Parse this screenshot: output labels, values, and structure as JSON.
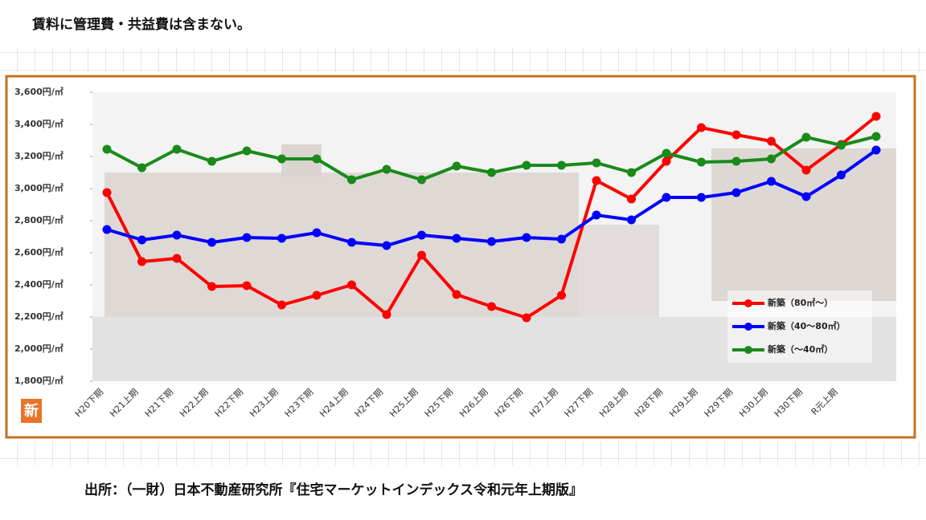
{
  "note": "賃料に管理費・共益費は含まない。",
  "source": "出所：（一財）日本不動産研究所『住宅マーケットインデックス令和元年上期版』",
  "badge": "新",
  "chart_data": {
    "type": "line",
    "categories": [
      "H20下期",
      "H21上期",
      "H21下期",
      "H22上期",
      "H22下期",
      "H23上期",
      "H23下期",
      "H24上期",
      "H24下期",
      "H25上期",
      "H25下期",
      "H26上期",
      "H26下期",
      "H27上期",
      "H27下期",
      "H28上期",
      "H28下期",
      "H29上期",
      "H29下期",
      "H30上期",
      "H30下期",
      "R元上期",
      null
    ],
    "series": [
      {
        "name": "新築（80㎡～）",
        "color": "#ff0000",
        "values": [
          2975,
          2545,
          2565,
          2390,
          2395,
          2275,
          2335,
          2400,
          2215,
          2585,
          2340,
          2265,
          2195,
          2335,
          3050,
          2935,
          3170,
          3380,
          3335,
          3295,
          3115,
          3275,
          3450
        ]
      },
      {
        "name": "新築（40～80㎡）",
        "color": "#0000ff",
        "values": [
          2745,
          2680,
          2710,
          2665,
          2695,
          2690,
          2725,
          2665,
          2645,
          2710,
          2690,
          2670,
          2695,
          2685,
          2835,
          2805,
          2945,
          2945,
          2975,
          3045,
          2950,
          3085,
          3240
        ]
      },
      {
        "name": "新築（～40㎡）",
        "color": "#1a8a1a",
        "values": [
          3245,
          3130,
          3245,
          3170,
          3235,
          3185,
          3185,
          3055,
          3120,
          3055,
          3140,
          3100,
          3145,
          3145,
          3160,
          3100,
          3220,
          3165,
          3170,
          3185,
          3320,
          3270,
          3325
        ]
      }
    ],
    "ylim": [
      1800,
      3600
    ],
    "yticks": [
      {
        "value": 1800,
        "label": "1,800円/㎡"
      },
      {
        "value": 2000,
        "label": "2,000円/㎡"
      },
      {
        "value": 2200,
        "label": "2,200円/㎡"
      },
      {
        "value": 2400,
        "label": "2,400円/㎡"
      },
      {
        "value": 2600,
        "label": "2,600円/㎡"
      },
      {
        "value": 2800,
        "label": "2,800円/㎡"
      },
      {
        "value": 3000,
        "label": "3,000円/㎡"
      },
      {
        "value": 3200,
        "label": "3,200円/㎡"
      },
      {
        "value": 3400,
        "label": "3,400円/㎡"
      },
      {
        "value": 3600,
        "label": "3,600円/㎡"
      }
    ],
    "legend": "lower right"
  }
}
